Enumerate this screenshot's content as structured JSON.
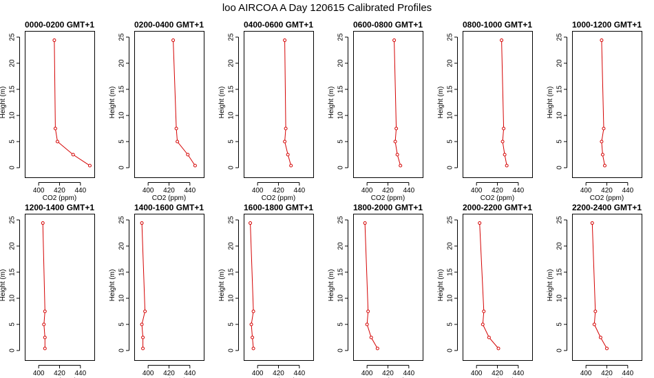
{
  "figure": {
    "title": "loo AIRCOA A  Day 120615  Calibrated Profiles"
  },
  "chart_data": [
    {
      "type": "line",
      "title": "0000-0200 GMT+1",
      "xlabel": "CO2 (ppm)",
      "ylabel": "Height (m)",
      "xlim": [
        390,
        450
      ],
      "ylim": [
        0,
        25
      ],
      "xticks": [
        "400",
        "420",
        "440"
      ],
      "yticks": [
        "0",
        "5",
        "10",
        "15",
        "20",
        "25"
      ],
      "series": [
        {
          "x": [
            415,
            416,
            418,
            433,
            449
          ],
          "y": [
            24.4,
            7.5,
            5,
            2.5,
            0.4
          ]
        }
      ]
    },
    {
      "type": "line",
      "title": "0200-0400 GMT+1",
      "xlabel": "CO2 (ppm)",
      "ylabel": "Height (m)",
      "xlim": [
        390,
        450
      ],
      "ylim": [
        0,
        25
      ],
      "xticks": [
        "400",
        "420",
        "440"
      ],
      "yticks": [
        "0",
        "5",
        "10",
        "15",
        "20",
        "25"
      ],
      "series": [
        {
          "x": [
            424,
            427,
            428,
            438,
            445
          ],
          "y": [
            24.4,
            7.5,
            5,
            2.5,
            0.4
          ]
        }
      ]
    },
    {
      "type": "line",
      "title": "0400-0600 GMT+1",
      "xlabel": "CO2 (ppm)",
      "ylabel": "Height (m)",
      "xlim": [
        390,
        450
      ],
      "ylim": [
        0,
        25
      ],
      "xticks": [
        "400",
        "420",
        "440"
      ],
      "yticks": [
        "0",
        "5",
        "10",
        "15",
        "20",
        "25"
      ],
      "series": [
        {
          "x": [
            426,
            427,
            426,
            429,
            432
          ],
          "y": [
            24.4,
            7.5,
            5,
            2.5,
            0.4
          ]
        }
      ]
    },
    {
      "type": "line",
      "title": "0600-0800 GMT+1",
      "xlabel": "CO2 (ppm)",
      "ylabel": "Height (m)",
      "xlim": [
        390,
        450
      ],
      "ylim": [
        0,
        25
      ],
      "xticks": [
        "400",
        "420",
        "440"
      ],
      "yticks": [
        "0",
        "5",
        "10",
        "15",
        "20",
        "25"
      ],
      "series": [
        {
          "x": [
            426,
            428,
            427,
            429,
            432
          ],
          "y": [
            24.4,
            7.5,
            5,
            2.5,
            0.4
          ]
        }
      ]
    },
    {
      "type": "line",
      "title": "0800-1000 GMT+1",
      "xlabel": "CO2 (ppm)",
      "ylabel": "Height (m)",
      "xlim": [
        390,
        450
      ],
      "ylim": [
        0,
        25
      ],
      "xticks": [
        "400",
        "420",
        "440"
      ],
      "yticks": [
        "0",
        "5",
        "10",
        "15",
        "20",
        "25"
      ],
      "series": [
        {
          "x": [
            424,
            426,
            425,
            427,
            429
          ],
          "y": [
            24.4,
            7.5,
            5,
            2.5,
            0.4
          ]
        }
      ]
    },
    {
      "type": "line",
      "title": "1000-1200 GMT+1",
      "xlabel": "CO2 (ppm)",
      "ylabel": "Height (m)",
      "xlim": [
        390,
        450
      ],
      "ylim": [
        0,
        25
      ],
      "xticks": [
        "400",
        "420",
        "440"
      ],
      "yticks": [
        "0",
        "5",
        "10",
        "15",
        "20",
        "25"
      ],
      "series": [
        {
          "x": [
            415,
            417,
            415,
            416,
            418
          ],
          "y": [
            24.4,
            7.5,
            5,
            2.5,
            0.4
          ]
        }
      ]
    },
    {
      "type": "line",
      "title": "1200-1400 GMT+1",
      "xlabel": "CO2 (ppm)",
      "ylabel": "Height (m)",
      "xlim": [
        390,
        450
      ],
      "ylim": [
        0,
        25
      ],
      "xticks": [
        "400",
        "420",
        "440"
      ],
      "yticks": [
        "0",
        "5",
        "10",
        "15",
        "20",
        "25"
      ],
      "series": [
        {
          "x": [
            404,
            406,
            405,
            406,
            406
          ],
          "y": [
            24.4,
            7.5,
            5,
            2.5,
            0.4
          ]
        }
      ]
    },
    {
      "type": "line",
      "title": "1400-1600 GMT+1",
      "xlabel": "CO2 (ppm)",
      "ylabel": "Height (m)",
      "xlim": [
        390,
        450
      ],
      "ylim": [
        0,
        25
      ],
      "xticks": [
        "400",
        "420",
        "440"
      ],
      "yticks": [
        "0",
        "5",
        "10",
        "15",
        "20",
        "25"
      ],
      "series": [
        {
          "x": [
            394,
            397,
            394,
            395,
            395
          ],
          "y": [
            24.4,
            7.5,
            5,
            2.5,
            0.4
          ]
        }
      ]
    },
    {
      "type": "line",
      "title": "1600-1800 GMT+1",
      "xlabel": "CO2 (ppm)",
      "ylabel": "Height (m)",
      "xlim": [
        390,
        450
      ],
      "ylim": [
        0,
        25
      ],
      "xticks": [
        "400",
        "420",
        "440"
      ],
      "yticks": [
        "0",
        "5",
        "10",
        "15",
        "20",
        "25"
      ],
      "series": [
        {
          "x": [
            393,
            396,
            394,
            395,
            396
          ],
          "y": [
            24.4,
            7.5,
            5,
            2.5,
            0.4
          ]
        }
      ]
    },
    {
      "type": "line",
      "title": "1800-2000 GMT+1",
      "xlabel": "CO2 (ppm)",
      "ylabel": "Height (m)",
      "xlim": [
        390,
        450
      ],
      "ylim": [
        0,
        25
      ],
      "xticks": [
        "400",
        "420",
        "440"
      ],
      "yticks": [
        "0",
        "5",
        "10",
        "15",
        "20",
        "25"
      ],
      "series": [
        {
          "x": [
            398,
            401,
            400,
            404,
            410
          ],
          "y": [
            24.4,
            7.5,
            5,
            2.5,
            0.4
          ]
        }
      ]
    },
    {
      "type": "line",
      "title": "2000-2200 GMT+1",
      "xlabel": "CO2 (ppm)",
      "ylabel": "Height (m)",
      "xlim": [
        390,
        450
      ],
      "ylim": [
        0,
        25
      ],
      "xticks": [
        "400",
        "420",
        "440"
      ],
      "yticks": [
        "0",
        "5",
        "10",
        "15",
        "20",
        "25"
      ],
      "series": [
        {
          "x": [
            403,
            407,
            406,
            412,
            421
          ],
          "y": [
            24.4,
            7.5,
            5,
            2.5,
            0.4
          ]
        }
      ]
    },
    {
      "type": "line",
      "title": "2200-2400 GMT+1",
      "xlabel": "CO2 (ppm)",
      "ylabel": "Height (m)",
      "xlim": [
        390,
        450
      ],
      "ylim": [
        0,
        25
      ],
      "xticks": [
        "400",
        "420",
        "440"
      ],
      "yticks": [
        "0",
        "5",
        "10",
        "15",
        "20",
        "25"
      ],
      "series": [
        {
          "x": [
            406,
            409,
            408,
            414,
            420
          ],
          "y": [
            24.4,
            7.5,
            5,
            2.5,
            0.4
          ]
        }
      ]
    }
  ]
}
